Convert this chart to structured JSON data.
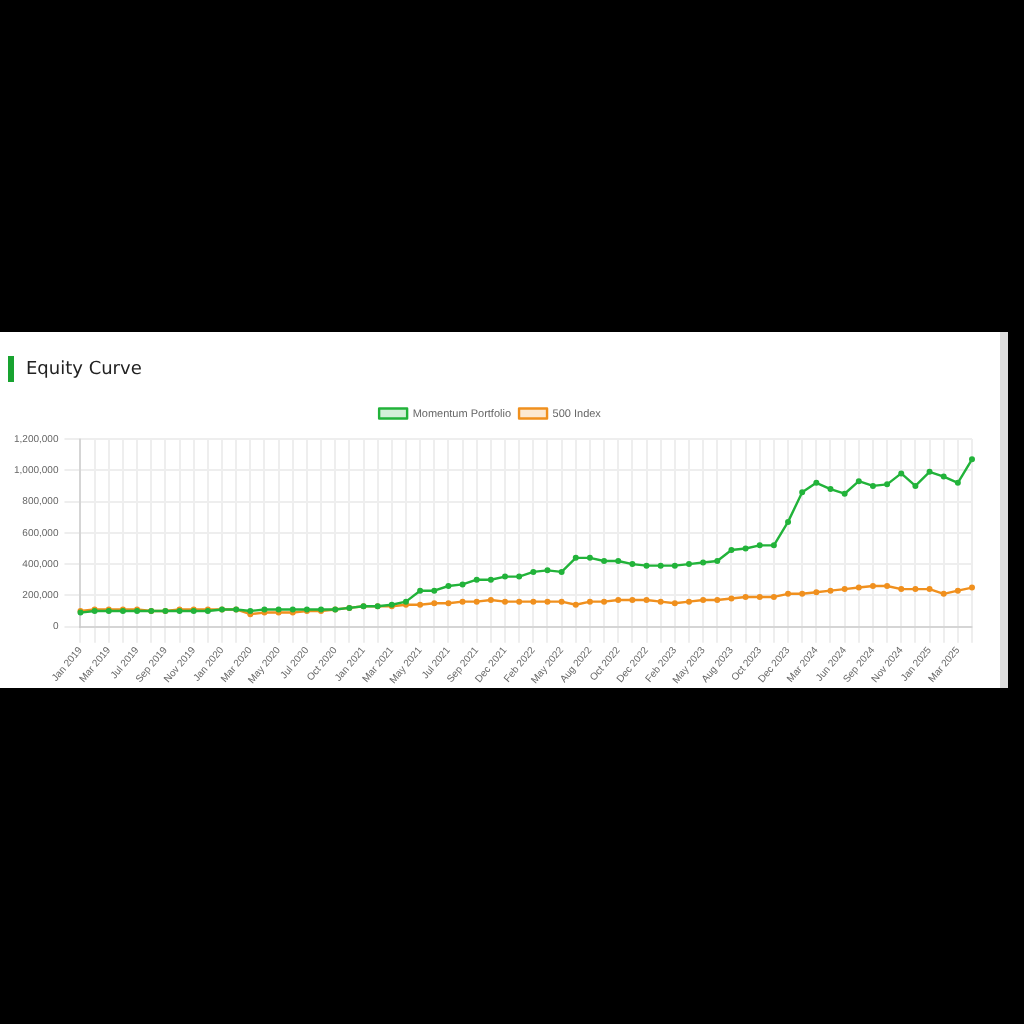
{
  "chart_data": {
    "type": "line",
    "title": "Equity Curve",
    "categories": [
      "Jan 2019",
      null,
      "Mar 2019",
      null,
      "Jul 2019",
      null,
      "Sep 2019",
      null,
      "Nov 2019",
      null,
      "Jan 2020",
      null,
      "Mar 2020",
      null,
      "May 2020",
      null,
      "Jul 2020",
      null,
      "Oct 2020",
      null,
      "Jan 2021",
      null,
      "Mar 2021",
      null,
      "May 2021",
      null,
      "Jul 2021",
      null,
      "Sep 2021",
      null,
      "Dec 2021",
      null,
      "Feb 2022",
      null,
      "May 2022",
      null,
      "Aug 2022",
      null,
      "Oct 2022",
      null,
      "Dec 2022",
      null,
      "Feb 2023",
      null,
      "May 2023",
      null,
      "Aug 2023",
      null,
      "Oct 2023",
      null,
      "Dec 2023",
      null,
      "Mar 2024",
      null,
      "Jun 2024",
      null,
      "Sep 2024",
      null,
      "Nov 2024",
      null,
      "Jan 2025",
      null,
      "Mar 2025",
      null
    ],
    "series": [
      {
        "name": "Momentum Portfolio",
        "color": "#22b33a",
        "values": [
          90000,
          100000,
          100000,
          100000,
          100000,
          100000,
          100000,
          100000,
          100000,
          100000,
          110000,
          110000,
          100000,
          110000,
          110000,
          110000,
          110000,
          110000,
          110000,
          120000,
          130000,
          130000,
          140000,
          160000,
          230000,
          230000,
          260000,
          270000,
          300000,
          300000,
          320000,
          320000,
          350000,
          360000,
          350000,
          440000,
          440000,
          420000,
          420000,
          400000,
          390000,
          390000,
          390000,
          400000,
          410000,
          420000,
          490000,
          500000,
          520000,
          520000,
          670000,
          860000,
          920000,
          880000,
          850000,
          930000,
          900000,
          910000,
          980000,
          900000,
          990000,
          960000,
          920000,
          1070000
        ]
      },
      {
        "name": "500 Index",
        "color": "#f0901e",
        "values": [
          100000,
          110000,
          110000,
          110000,
          110000,
          100000,
          100000,
          110000,
          110000,
          110000,
          110000,
          110000,
          80000,
          90000,
          90000,
          90000,
          100000,
          100000,
          110000,
          120000,
          130000,
          130000,
          130000,
          140000,
          140000,
          150000,
          150000,
          160000,
          160000,
          170000,
          160000,
          160000,
          160000,
          160000,
          160000,
          140000,
          160000,
          160000,
          170000,
          170000,
          170000,
          160000,
          150000,
          160000,
          170000,
          170000,
          180000,
          190000,
          190000,
          190000,
          210000,
          210000,
          220000,
          230000,
          240000,
          250000,
          260000,
          260000,
          240000,
          240000,
          240000,
          210000,
          230000,
          250000
        ]
      }
    ],
    "ylim": [
      0,
      1200000
    ],
    "yticks": [
      0,
      {
        "value": 200000,
        "label": "200,000"
      },
      {
        "value": 400000,
        "label": "400,000"
      },
      {
        "value": 600000,
        "label": "600,000"
      },
      {
        "value": 800000,
        "label": "800,000"
      },
      {
        "value": 1000000,
        "label": "1,000,000"
      },
      {
        "value": 1200000,
        "label": "1,200,000"
      }
    ],
    "grid": true,
    "legend": "top",
    "marker": "circle",
    "line_style": "solid"
  }
}
